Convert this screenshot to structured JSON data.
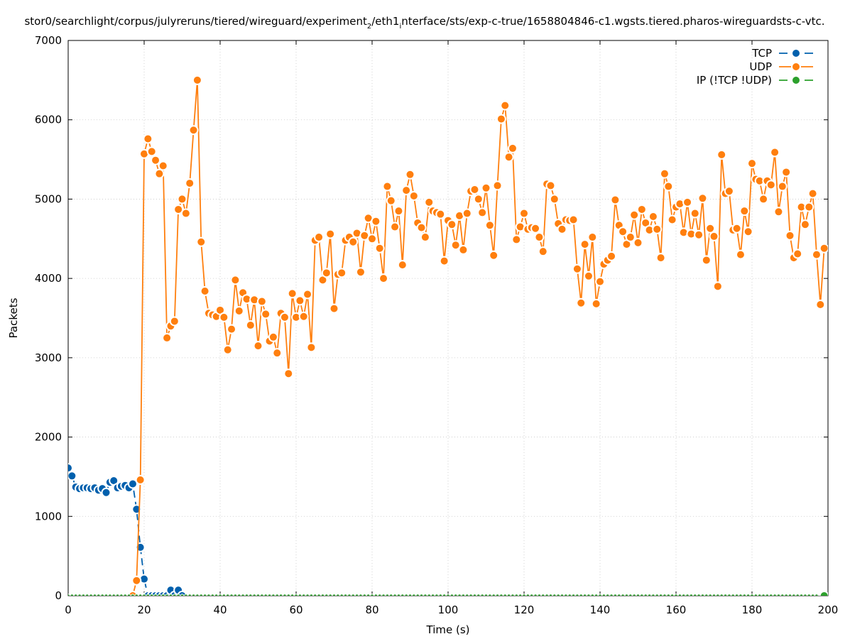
{
  "chart_data": {
    "type": "line",
    "title": "stor0/searchlight/corpus/julyreruns/tiered/wireguard/experiment",
    "title_sub1": "2",
    "title_mid": "/eth1",
    "title_sub2": "i",
    "title_tail": "nterface/sts/exp-c-true/1658804846-c1.wgsts.tiered.pharos-wireguardsts-c-vtc.",
    "xlabel": "Time (s)",
    "ylabel": "Packets",
    "xlim": [
      0,
      200
    ],
    "ylim": [
      0,
      7000
    ],
    "x_ticks": [
      0,
      20,
      40,
      60,
      80,
      100,
      120,
      140,
      160,
      180,
      200
    ],
    "y_ticks": [
      0,
      1000,
      2000,
      3000,
      4000,
      5000,
      6000,
      7000
    ],
    "grid": true,
    "legend_position": "top-right",
    "series": [
      {
        "name": "TCP",
        "color": "#0060ad",
        "dash": "dashed",
        "x": [
          0,
          1,
          2,
          3,
          4,
          5,
          6,
          7,
          8,
          9,
          10,
          11,
          12,
          13,
          14,
          15,
          16,
          17,
          18,
          19,
          20,
          21,
          22,
          23,
          24,
          25,
          26,
          27,
          28,
          29,
          30
        ],
        "y": [
          1610,
          1510,
          1370,
          1350,
          1360,
          1360,
          1350,
          1360,
          1330,
          1350,
          1300,
          1430,
          1450,
          1360,
          1380,
          1390,
          1360,
          1410,
          1090,
          610,
          210,
          0,
          0,
          0,
          0,
          0,
          0,
          70,
          0,
          70,
          0
        ]
      },
      {
        "name": "UDP",
        "color": "#ff7f0e",
        "dash": "solid",
        "x": [
          17,
          18,
          19,
          20,
          21,
          22,
          23,
          24,
          25,
          26,
          27,
          28,
          29,
          30,
          31,
          32,
          33,
          34,
          35,
          36,
          37,
          38,
          39,
          40,
          41,
          42,
          43,
          44,
          45,
          46,
          47,
          48,
          49,
          50,
          51,
          52,
          53,
          54,
          55,
          56,
          57,
          58,
          59,
          60,
          61,
          62,
          63,
          64,
          65,
          66,
          67,
          68,
          69,
          70,
          71,
          72,
          73,
          74,
          75,
          76,
          77,
          78,
          79,
          80,
          81,
          82,
          83,
          84,
          85,
          86,
          87,
          88,
          89,
          90,
          91,
          92,
          93,
          94,
          95,
          96,
          97,
          98,
          99,
          100,
          101,
          102,
          103,
          104,
          105,
          106,
          107,
          108,
          109,
          110,
          111,
          112,
          113,
          114,
          115,
          116,
          117,
          118,
          119,
          120,
          121,
          122,
          123,
          124,
          125,
          126,
          127,
          128,
          129,
          130,
          131,
          132,
          133,
          134,
          135,
          136,
          137,
          138,
          139,
          140,
          141,
          142,
          143,
          144,
          145,
          146,
          147,
          148,
          149,
          150,
          151,
          152,
          153,
          154,
          155,
          156,
          157,
          158,
          159,
          160,
          161,
          162,
          163,
          164,
          165,
          166,
          167,
          168,
          169,
          170,
          171,
          172,
          173,
          174,
          175,
          176,
          177,
          178,
          179,
          180,
          181,
          182,
          183,
          184,
          185,
          186,
          187,
          188,
          189,
          190,
          191,
          192,
          193,
          194,
          195,
          196,
          197,
          198,
          199
        ],
        "y": [
          0,
          190,
          1460,
          5570,
          5760,
          5600,
          5490,
          5320,
          5420,
          3250,
          3400,
          3460,
          4870,
          5000,
          4820,
          5200,
          5870,
          6500,
          4460,
          3840,
          3560,
          3540,
          3520,
          3600,
          3510,
          3100,
          3360,
          3980,
          3590,
          3820,
          3740,
          3410,
          3730,
          3150,
          3710,
          3550,
          3210,
          3260,
          3060,
          3560,
          3510,
          2800,
          3810,
          3510,
          3720,
          3520,
          3800,
          3130,
          4480,
          4520,
          3980,
          4070,
          4560,
          3620,
          4050,
          4070,
          4480,
          4520,
          4460,
          4570,
          4080,
          4540,
          4760,
          4500,
          4720,
          4380,
          4000,
          5160,
          4980,
          4650,
          4850,
          4170,
          5110,
          5310,
          5040,
          4700,
          4640,
          4520,
          4960,
          4850,
          4830,
          4810,
          4220,
          4730,
          4680,
          4420,
          4790,
          4360,
          4820,
          5100,
          5120,
          5000,
          4830,
          5140,
          4670,
          4290,
          5170,
          6010,
          6180,
          5530,
          5640,
          4490,
          4650,
          4820,
          4620,
          4640,
          4630,
          4520,
          4340,
          5190,
          5170,
          5000,
          4690,
          4620,
          4740,
          4730,
          4740,
          4120,
          3690,
          4430,
          4030,
          4520,
          3680,
          3960,
          4180,
          4230,
          4280,
          4990,
          4670,
          4590,
          4430,
          4520,
          4800,
          4450,
          4870,
          4700,
          4610,
          4780,
          4620,
          4260,
          5320,
          5160,
          4740,
          4900,
          4940,
          4580,
          4960,
          4560,
          4820,
          4550,
          5010,
          4230,
          4630,
          4530,
          3900,
          5560,
          5070,
          5100,
          4610,
          4630,
          4300,
          4850,
          4590,
          5450,
          5250,
          5230,
          5000,
          5230,
          5180,
          5590,
          4840,
          5160,
          5340,
          4540,
          4260,
          4310,
          4900,
          4680,
          4900,
          5070,
          4300,
          3670,
          4380
        ]
      },
      {
        "name": "IP (!TCP  !UDP)",
        "color": "#2ca02c",
        "dash": "dashed",
        "x": [
          0,
          199
        ],
        "y": [
          0,
          0
        ]
      }
    ]
  }
}
